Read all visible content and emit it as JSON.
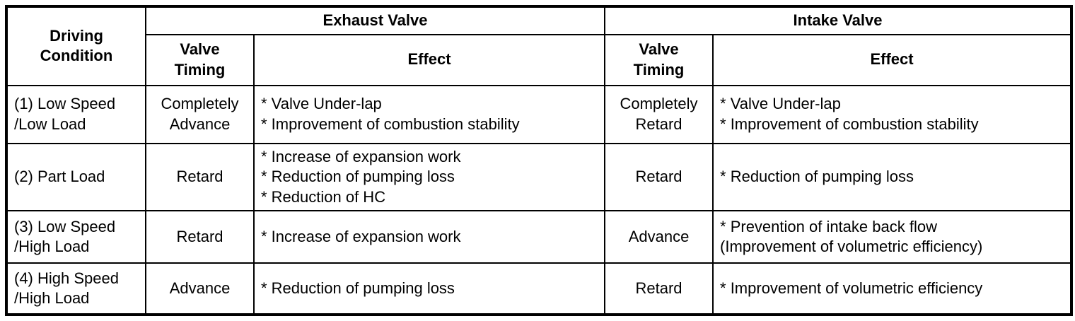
{
  "table": {
    "headers": {
      "driving_condition": "Driving\nCondition",
      "exhaust_valve": "Exhaust Valve",
      "intake_valve": "Intake Valve",
      "valve_timing": "Valve\nTiming",
      "effect": "Effect"
    },
    "rows": [
      {
        "condition": "(1) Low Speed\n/Low Load",
        "exhaust_timing": "Completely\nAdvance",
        "exhaust_effect": "* Valve Under-lap\n* Improvement of combustion stability",
        "intake_timing": "Completely\nRetard",
        "intake_effect": "* Valve Under-lap\n* Improvement of combustion stability"
      },
      {
        "condition": "(2) Part Load",
        "exhaust_timing": "Retard",
        "exhaust_effect": "* Increase of expansion work\n* Reduction of pumping loss\n* Reduction of HC",
        "intake_timing": "Retard",
        "intake_effect": "* Reduction of pumping loss"
      },
      {
        "condition": "(3) Low Speed\n/High Load",
        "exhaust_timing": "Retard",
        "exhaust_effect": "* Increase of expansion work",
        "intake_timing": "Advance",
        "intake_effect": "* Prevention of intake back flow\n(Improvement of volumetric efficiency)"
      },
      {
        "condition": "(4) High Speed\n/High Load",
        "exhaust_timing": "Advance",
        "exhaust_effect": "* Reduction of pumping loss",
        "intake_timing": "Retard",
        "intake_effect": "* Improvement of volumetric efficiency"
      }
    ]
  }
}
